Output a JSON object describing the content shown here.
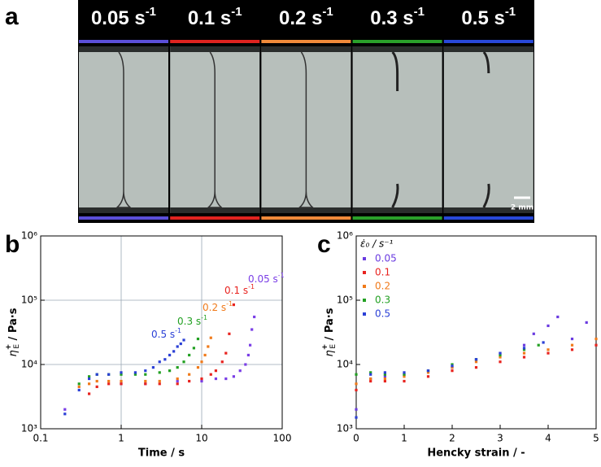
{
  "panel_a": {
    "label": "a",
    "scale_bar": "2 mm",
    "frames": [
      {
        "rate": "0.05 s",
        "exponent": "-1",
        "color": "#5b4fd8"
      },
      {
        "rate": "0.1 s",
        "exponent": "-1",
        "color": "#e0231f"
      },
      {
        "rate": "0.2 s",
        "exponent": "-1",
        "color": "#f08a3a"
      },
      {
        "rate": "0.3 s",
        "exponent": "-1",
        "color": "#2aa02a"
      },
      {
        "rate": "0.5 s",
        "exponent": "-1",
        "color": "#2848d8"
      }
    ]
  },
  "chart_data": [
    {
      "type": "scatter",
      "panel_label": "b",
      "xlabel": "Time / s",
      "ylabel": {
        "symbol": "η",
        "sup": "+",
        "sub": "E",
        "unit": " / Pa·s"
      },
      "xscale": "log",
      "yscale": "log",
      "grid": true,
      "xlim": [
        0.1,
        100
      ],
      "xticks": [
        0.1,
        1,
        10,
        100
      ],
      "ylim": [
        1000,
        1000000
      ],
      "yticks": [
        {
          "value": 1000,
          "label": "10³"
        },
        {
          "value": 10000,
          "label": "10⁴"
        },
        {
          "value": 100000,
          "label": "10⁵"
        },
        {
          "value": 1000000,
          "label": "10⁶"
        }
      ],
      "series": [
        {
          "color": "#7a3ee6",
          "x": [
            0.2,
            1,
            2,
            5,
            10,
            15,
            20,
            25,
            30,
            35,
            38,
            40,
            42,
            45
          ],
          "values": [
            2000,
            5000,
            5000,
            5500,
            5500,
            6000,
            6000,
            6500,
            8000,
            10000,
            14000,
            20000,
            35000,
            55000
          ]
        },
        {
          "color": "#e8231f",
          "x": [
            0.4,
            0.5,
            0.7,
            1,
            2,
            3,
            5,
            7,
            10,
            13,
            15,
            18,
            20,
            22,
            25
          ],
          "values": [
            3500,
            4500,
            5000,
            5000,
            5000,
            5000,
            5000,
            5500,
            6000,
            7000,
            8000,
            11000,
            15000,
            30000,
            85000
          ]
        },
        {
          "color": "#f07a1a",
          "x": [
            0.3,
            0.4,
            0.5,
            0.7,
            1,
            2,
            3,
            5,
            7,
            9,
            10,
            11,
            12,
            13
          ],
          "values": [
            4500,
            5000,
            5500,
            5500,
            5500,
            5500,
            5500,
            6000,
            7000,
            9000,
            11000,
            14000,
            19000,
            26000
          ]
        },
        {
          "color": "#22a022",
          "x": [
            0.3,
            0.4,
            0.5,
            0.7,
            1,
            1.5,
            2,
            3,
            4,
            5,
            6,
            7,
            8,
            9
          ],
          "values": [
            5000,
            6500,
            7000,
            7000,
            7000,
            7000,
            7000,
            7500,
            8000,
            9000,
            11000,
            14000,
            18000,
            25000
          ]
        },
        {
          "color": "#2b40d6",
          "x": [
            0.2,
            0.3,
            0.4,
            0.5,
            0.7,
            1,
            1.5,
            2,
            2.5,
            3,
            3.5,
            4,
            4.5,
            5,
            5.5,
            6
          ],
          "values": [
            1700,
            4000,
            6000,
            7000,
            7000,
            7500,
            7500,
            8000,
            9000,
            11000,
            12000,
            14000,
            16000,
            19000,
            21000,
            24000
          ]
        }
      ],
      "annotations": [
        {
          "text": "0.05 s",
          "sup": "-1",
          "color": "#7a3ee6"
        },
        {
          "text": "0.1 s",
          "sup": "-1",
          "color": "#e8231f"
        },
        {
          "text": "0.2 s",
          "sup": "-1",
          "color": "#f07a1a"
        },
        {
          "text": "0.3 s",
          "sup": "-1",
          "color": "#22a022"
        },
        {
          "text": "0.5 s",
          "sup": "-1",
          "color": "#2b40d6"
        }
      ]
    },
    {
      "type": "scatter",
      "panel_label": "c",
      "xlabel": "Hencky strain / -",
      "ylabel": {
        "symbol": "η",
        "sup": "+",
        "sub": "E",
        "unit": " / Pa·s"
      },
      "xscale": "linear",
      "yscale": "log",
      "grid": false,
      "xlim": [
        0,
        5
      ],
      "xticks": [
        0,
        1,
        2,
        3,
        4,
        5
      ],
      "ylim": [
        1000,
        1000000
      ],
      "yticks": [
        {
          "value": 1000,
          "label": "10³"
        },
        {
          "value": 10000,
          "label": "10⁴"
        },
        {
          "value": 100000,
          "label": "10⁵"
        },
        {
          "value": 1000000,
          "label": "10⁶"
        }
      ],
      "legend": {
        "title": "ε̇₀ / s⁻¹",
        "corner": "upper left"
      },
      "series": [
        {
          "name": "0.05",
          "color": "#6a3be0",
          "x": [
            0,
            0.3,
            0.6,
            1,
            1.5,
            2,
            2.5,
            3,
            3.5,
            3.7,
            4,
            4.2,
            4.5,
            4.8
          ],
          "values": [
            2000,
            6000,
            6500,
            7000,
            8000,
            9000,
            12000,
            15000,
            20000,
            30000,
            40000,
            55000,
            25000,
            45000
          ]
        },
        {
          "name": "0.1",
          "color": "#e8231f",
          "x": [
            0,
            0.3,
            0.6,
            1,
            1.5,
            2,
            2.5,
            3,
            3.5,
            4,
            4.5,
            5
          ],
          "values": [
            4000,
            5500,
            5500,
            5500,
            6500,
            8000,
            9000,
            11000,
            13000,
            15000,
            17000,
            20000
          ]
        },
        {
          "name": "0.2",
          "color": "#f07a1a",
          "x": [
            0,
            0.3,
            0.6,
            1,
            1.5,
            2,
            2.5,
            3,
            3.5,
            4,
            4.5,
            5
          ],
          "values": [
            5000,
            6000,
            6000,
            6500,
            7500,
            9000,
            11000,
            13000,
            15000,
            17000,
            20000,
            25000
          ]
        },
        {
          "name": "0.3",
          "color": "#22a022",
          "x": [
            0,
            0.3,
            0.6,
            1,
            1.5,
            2,
            2.5,
            3,
            3.5,
            3.8
          ],
          "values": [
            7000,
            7500,
            7000,
            7000,
            8000,
            10000,
            12000,
            14000,
            17000,
            20000
          ]
        },
        {
          "name": "0.5",
          "color": "#2b40d6",
          "x": [
            0,
            0.3,
            0.6,
            1,
            1.5,
            2,
            2.5,
            3,
            3.5,
            3.9
          ],
          "values": [
            1500,
            7000,
            7500,
            7500,
            8000,
            9500,
            12000,
            15000,
            18000,
            22000
          ]
        }
      ]
    }
  ]
}
